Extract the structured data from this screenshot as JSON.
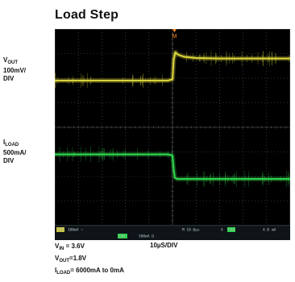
{
  "title": "Load Step",
  "channels": [
    {
      "main": "V",
      "sub": "OUT",
      "rest": "100mV/",
      "unit": "DIV"
    },
    {
      "main": "I",
      "sub": "LOAD",
      "rest": "500mA/",
      "unit": "DIV"
    }
  ],
  "trigger_marker": "M",
  "status_bar": {
    "ch1": "CH1",
    "ch1_scale": "100mV ~",
    "time_scale": "M 10.0µs",
    "trig": "A",
    "ch4": "CH4",
    "trig_level": "4.0 mA",
    "ch4_scale": "500mA Ω"
  },
  "timebase": "10µS/DIV",
  "conditions": [
    {
      "main": "V",
      "sub": "IN",
      "rest": " = 3.6V"
    },
    {
      "main": "V",
      "sub": "OUT",
      "rest": "=1.8V"
    },
    {
      "main": "I",
      "sub": "LOAD",
      "rest": "= 6000mA to 0mA"
    }
  ],
  "colors": {
    "background": "#000000",
    "grid": "#5a5a5a",
    "vout_trace": "#d6d23a",
    "iload_trace": "#2fd24a",
    "trigger_marker": "#ff8a1c"
  },
  "chart_data": {
    "type": "line",
    "title": "Load Step",
    "xlabel": "10µS/DIV",
    "divisions_x": 10,
    "divisions_y": 8,
    "grid": true,
    "xlim": [
      -5,
      5
    ],
    "ylim": [
      -4,
      4
    ],
    "series": [
      {
        "name": "VOUT",
        "x": [
          -5,
          -0.2,
          0.0,
          0.05,
          0.12,
          0.25,
          0.5,
          1.0,
          2.0,
          3.0,
          4.0,
          5.0
        ],
        "y": [
          1.9,
          1.9,
          1.95,
          2.75,
          3.05,
          2.95,
          2.87,
          2.82,
          2.8,
          2.8,
          2.8,
          2.8
        ]
      },
      {
        "name": "ILOAD",
        "x": [
          -5,
          -0.2,
          0.0,
          0.05,
          0.1,
          0.2,
          5.0
        ],
        "y": [
          -1.1,
          -1.1,
          -1.15,
          -1.7,
          -2.05,
          -2.1,
          -2.1
        ]
      }
    ]
  }
}
